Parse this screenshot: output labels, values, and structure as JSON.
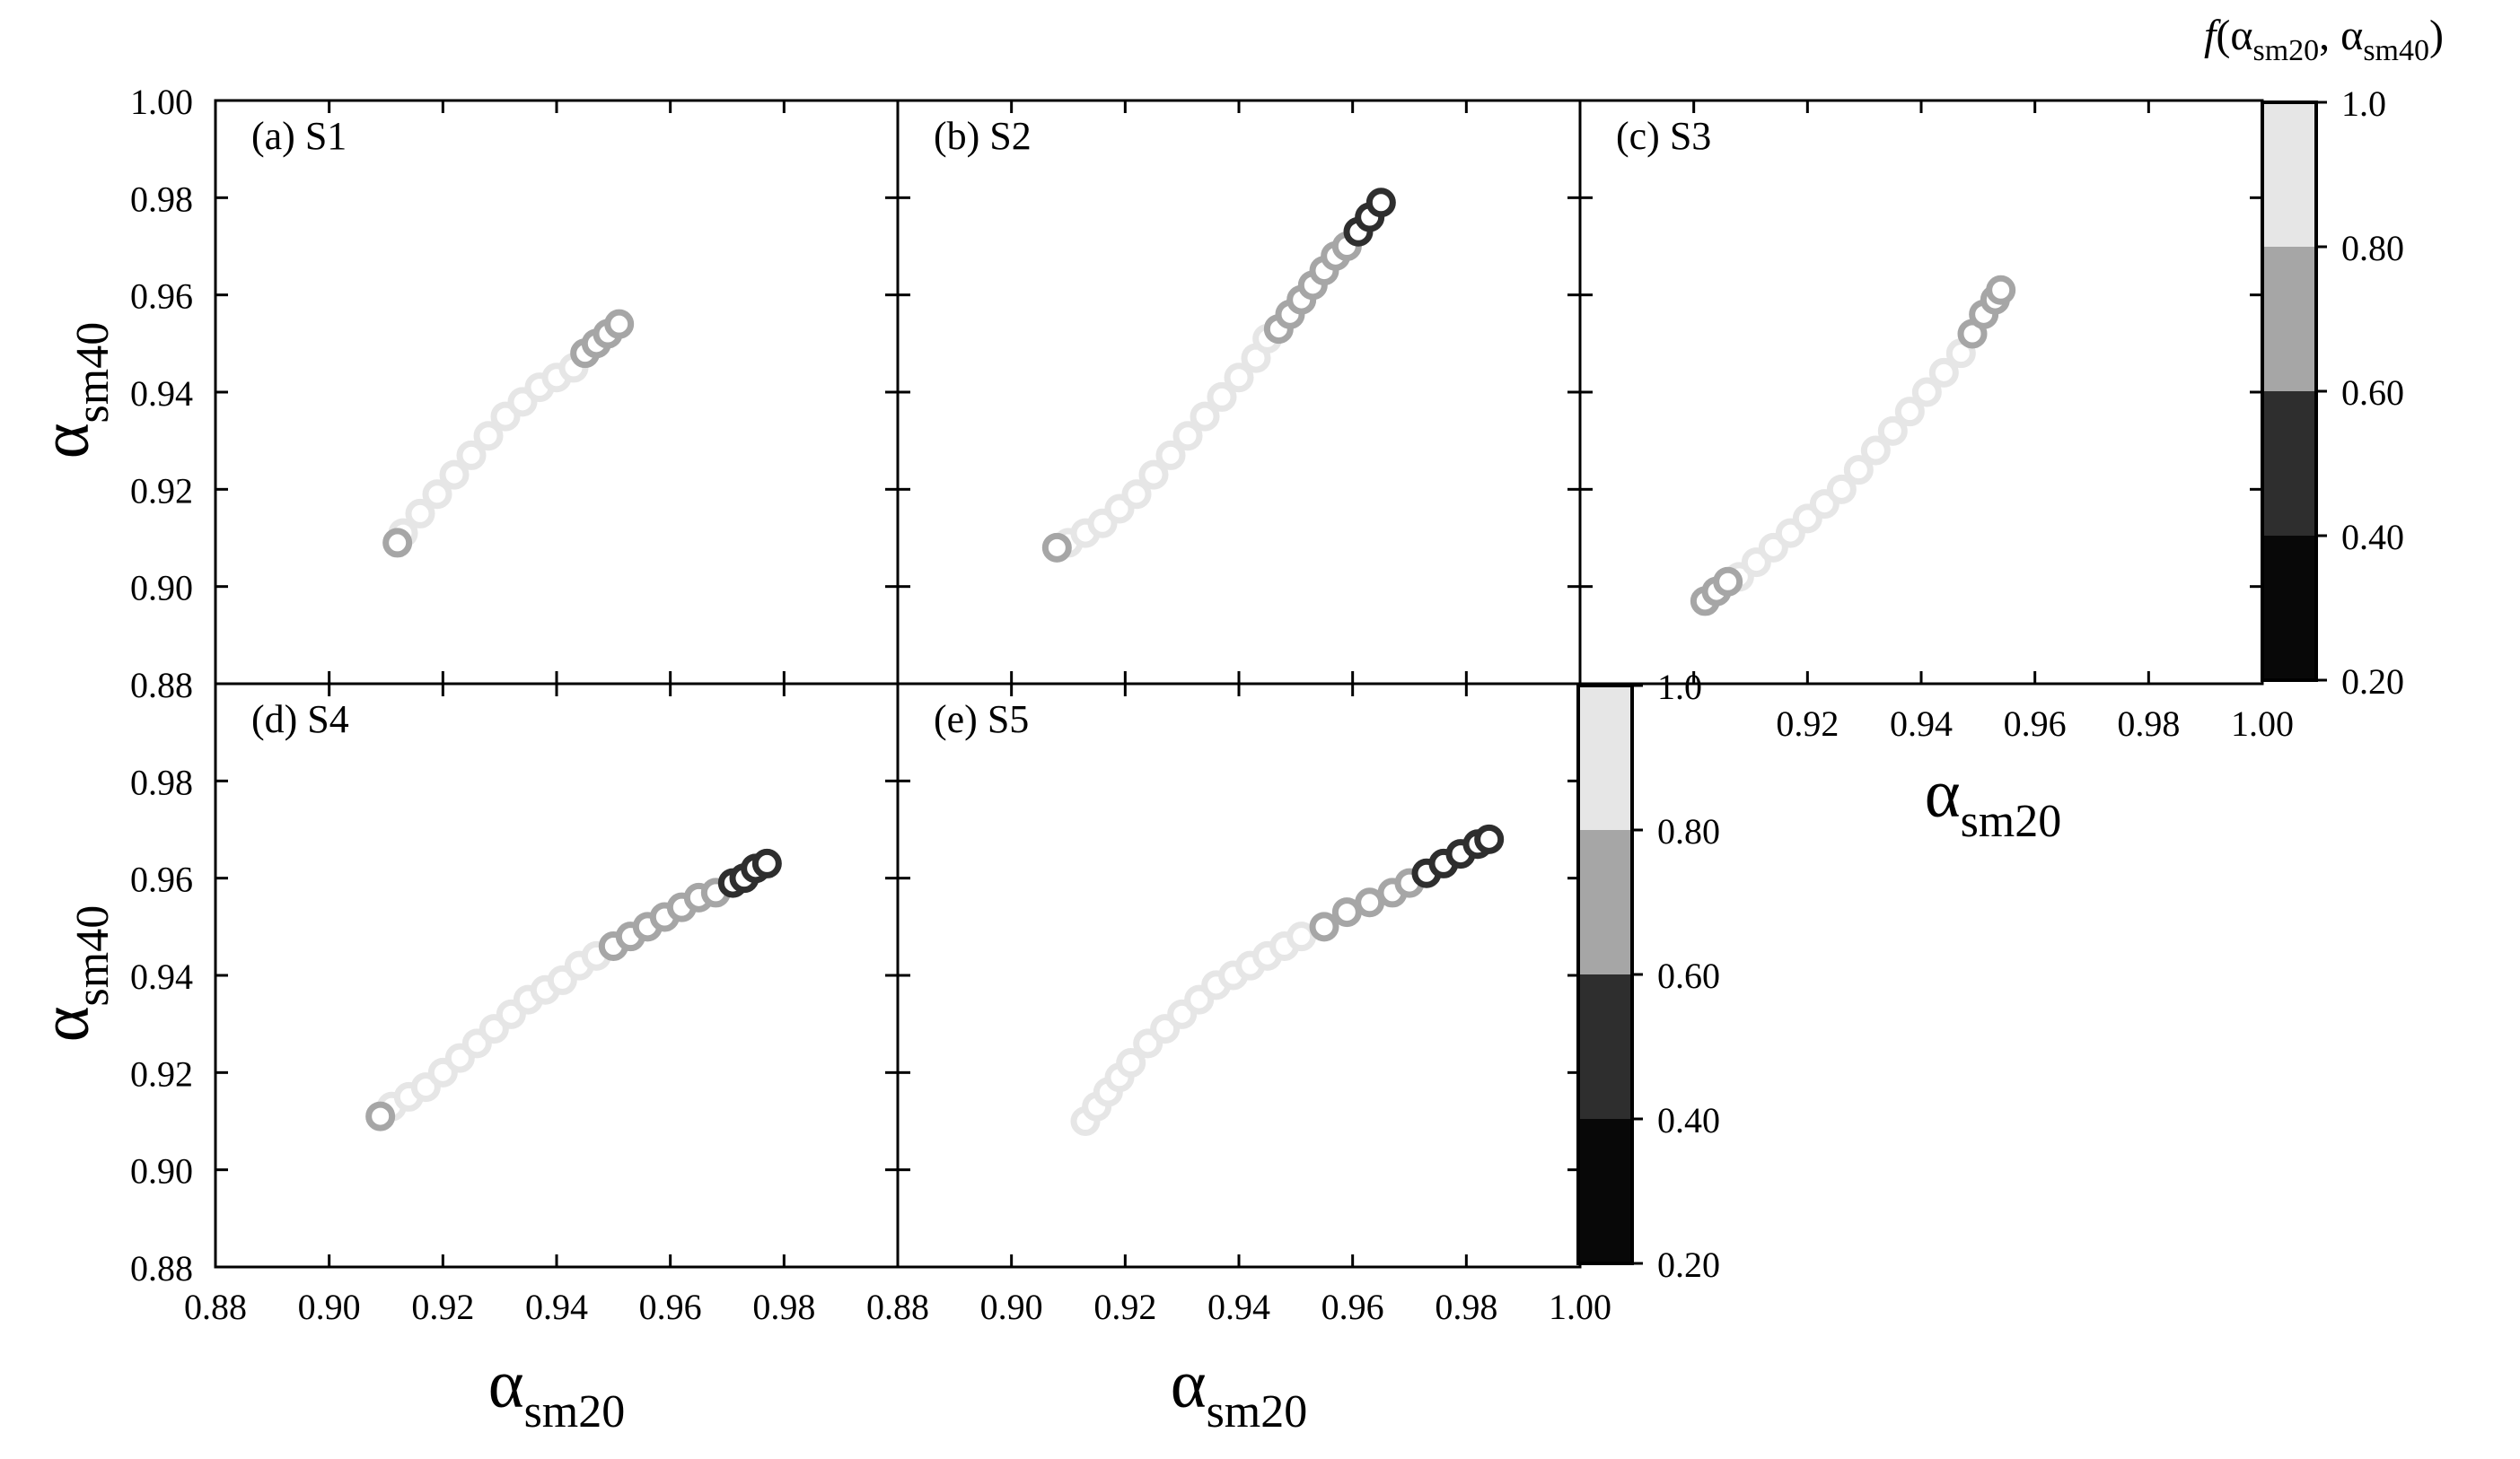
{
  "colorbar": {
    "title": "f(α_sm20, α_sm40)",
    "title_parts": {
      "f": "f",
      "open": "(α",
      "sub1": "sm20",
      "mid": ", α",
      "sub2": "sm40",
      "close": ")"
    },
    "ticks_top": [
      "1.0",
      "0.80",
      "0.60",
      "0.40",
      "0.20"
    ],
    "ticks_bottom": [
      "1.0",
      "0.80",
      "0.60",
      "0.40",
      "0.20"
    ],
    "bands": [
      {
        "range": [
          0.8,
          1.0
        ],
        "color": "#e6e6e6"
      },
      {
        "range": [
          0.6,
          0.8
        ],
        "color": "#a6a6a6"
      },
      {
        "range": [
          0.4,
          0.6
        ],
        "color": "#2e2e2e"
      },
      {
        "range": [
          0.2,
          0.4
        ],
        "color": "#080808"
      }
    ]
  },
  "axis_symbol": "α",
  "xlabel_sub": "sm20",
  "ylabel_sub": "sm40",
  "xticks_bottom": [
    "0.88",
    "0.90",
    "0.92",
    "0.94",
    "0.96",
    "0.98"
  ],
  "xticks_bottom_last": [
    "0.88",
    "0.90",
    "0.92",
    "0.94",
    "0.96",
    "0.98",
    "1.00"
  ],
  "xticks_c": [
    "0.92",
    "0.94",
    "0.96",
    "0.98",
    "1.00"
  ],
  "yticks_top": [
    "1.00",
    "0.98",
    "0.96",
    "0.94",
    "0.92",
    "0.90",
    "0.88"
  ],
  "yticks_bottom": [
    "0.98",
    "0.96",
    "0.94",
    "0.92",
    "0.90",
    "0.88"
  ],
  "chart_data": [
    {
      "type": "scatter",
      "title": "(a) S1",
      "xlabel": "",
      "ylabel": "α_sm40",
      "xlim": [
        0.88,
        1.0
      ],
      "ylim": [
        0.88,
        1.0
      ],
      "series": [
        {
          "color": "#e6e6e6",
          "x": [
            0.913,
            0.916,
            0.919,
            0.922,
            0.925,
            0.928,
            0.931,
            0.934,
            0.937,
            0.94,
            0.943
          ],
          "y": [
            0.911,
            0.915,
            0.919,
            0.923,
            0.927,
            0.931,
            0.935,
            0.938,
            0.941,
            0.943,
            0.945
          ]
        },
        {
          "color": "#a6a6a6",
          "x": [
            0.912,
            0.945,
            0.947,
            0.949,
            0.951
          ],
          "y": [
            0.909,
            0.948,
            0.95,
            0.952,
            0.954
          ]
        }
      ]
    },
    {
      "type": "scatter",
      "title": "(b) S2",
      "xlabel": "",
      "ylabel": "",
      "xlim": [
        0.88,
        1.0
      ],
      "ylim": [
        0.88,
        1.0
      ],
      "series": [
        {
          "color": "#e6e6e6",
          "x": [
            0.91,
            0.913,
            0.916,
            0.919,
            0.922,
            0.925,
            0.928,
            0.931,
            0.934,
            0.937,
            0.94,
            0.943,
            0.945
          ],
          "y": [
            0.909,
            0.911,
            0.913,
            0.916,
            0.919,
            0.923,
            0.927,
            0.931,
            0.935,
            0.939,
            0.943,
            0.947,
            0.951
          ]
        },
        {
          "color": "#a6a6a6",
          "x": [
            0.908,
            0.947,
            0.949,
            0.951,
            0.953,
            0.955,
            0.957,
            0.959
          ],
          "y": [
            0.908,
            0.953,
            0.956,
            0.959,
            0.962,
            0.965,
            0.968,
            0.97
          ]
        },
        {
          "color": "#2e2e2e",
          "x": [
            0.961,
            0.963,
            0.965
          ],
          "y": [
            0.973,
            0.976,
            0.979
          ]
        }
      ]
    },
    {
      "type": "scatter",
      "title": "(c) S3",
      "xlabel": "α_sm20",
      "ylabel": "",
      "xlim": [
        0.88,
        1.0
      ],
      "ylim": [
        0.88,
        1.0
      ],
      "series": [
        {
          "color": "#e6e6e6",
          "x": [
            0.908,
            0.911,
            0.914,
            0.917,
            0.92,
            0.923,
            0.926,
            0.929,
            0.932,
            0.935,
            0.938,
            0.941,
            0.944,
            0.947
          ],
          "y": [
            0.902,
            0.905,
            0.908,
            0.911,
            0.914,
            0.917,
            0.92,
            0.924,
            0.928,
            0.932,
            0.936,
            0.94,
            0.944,
            0.948
          ]
        },
        {
          "color": "#a6a6a6",
          "x": [
            0.902,
            0.904,
            0.906,
            0.949,
            0.951,
            0.953,
            0.954
          ],
          "y": [
            0.897,
            0.899,
            0.901,
            0.952,
            0.956,
            0.959,
            0.961
          ]
        }
      ]
    },
    {
      "type": "scatter",
      "title": "(d) S4",
      "xlabel": "α_sm20",
      "ylabel": "α_sm40",
      "xlim": [
        0.88,
        1.0
      ],
      "ylim": [
        0.88,
        1.0
      ],
      "series": [
        {
          "color": "#e6e6e6",
          "x": [
            0.911,
            0.914,
            0.917,
            0.92,
            0.923,
            0.926,
            0.929,
            0.932,
            0.935,
            0.938,
            0.941,
            0.944,
            0.947
          ],
          "y": [
            0.913,
            0.915,
            0.917,
            0.92,
            0.923,
            0.926,
            0.929,
            0.932,
            0.935,
            0.937,
            0.939,
            0.942,
            0.944
          ]
        },
        {
          "color": "#a6a6a6",
          "x": [
            0.909,
            0.95,
            0.953,
            0.956,
            0.959,
            0.962,
            0.965,
            0.968
          ],
          "y": [
            0.911,
            0.946,
            0.948,
            0.95,
            0.952,
            0.954,
            0.956,
            0.957
          ]
        },
        {
          "color": "#2e2e2e",
          "x": [
            0.971,
            0.973,
            0.975,
            0.977
          ],
          "y": [
            0.959,
            0.96,
            0.962,
            0.963
          ]
        }
      ]
    },
    {
      "type": "scatter",
      "title": "(e) S5",
      "xlabel": "α_sm20",
      "ylabel": "",
      "xlim": [
        0.88,
        1.0
      ],
      "ylim": [
        0.88,
        1.0
      ],
      "series": [
        {
          "color": "#e6e6e6",
          "x": [
            0.913,
            0.915,
            0.917,
            0.919,
            0.921,
            0.924,
            0.927,
            0.93,
            0.933,
            0.936,
            0.939,
            0.942,
            0.945,
            0.948,
            0.951
          ],
          "y": [
            0.91,
            0.913,
            0.916,
            0.919,
            0.922,
            0.926,
            0.929,
            0.932,
            0.935,
            0.938,
            0.94,
            0.942,
            0.944,
            0.946,
            0.948
          ]
        },
        {
          "color": "#a6a6a6",
          "x": [
            0.955,
            0.959,
            0.963,
            0.967,
            0.97
          ],
          "y": [
            0.95,
            0.953,
            0.955,
            0.957,
            0.959
          ]
        },
        {
          "color": "#2e2e2e",
          "x": [
            0.973,
            0.976,
            0.979,
            0.982,
            0.984
          ],
          "y": [
            0.961,
            0.963,
            0.965,
            0.967,
            0.968
          ]
        }
      ]
    }
  ]
}
